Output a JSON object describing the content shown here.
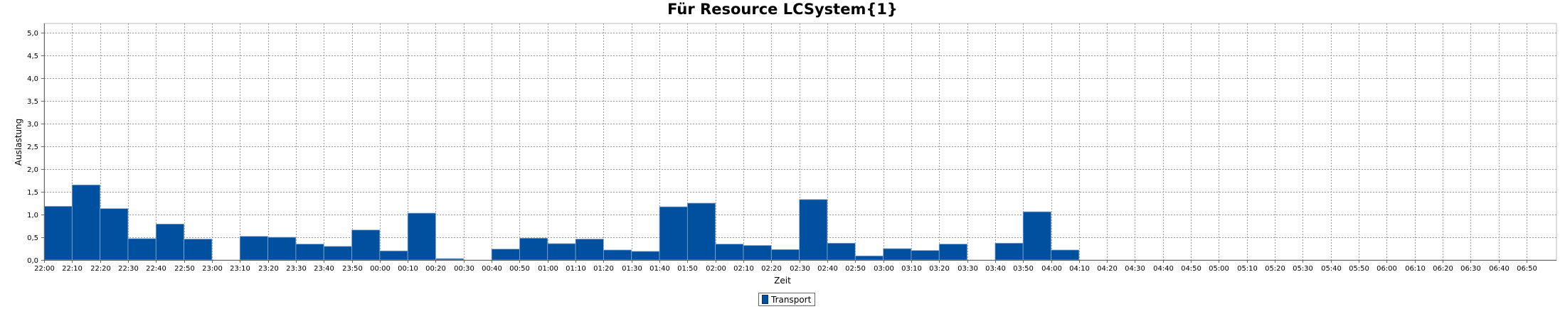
{
  "chart_data": {
    "type": "bar",
    "title": "Für Resource LCSystem{1}",
    "xlabel": "Zeit",
    "ylabel": "Auslastung",
    "ylim": [
      0,
      5.2
    ],
    "yticks": [
      "0,0",
      "0,5",
      "1,0",
      "1,5",
      "2,0",
      "2,5",
      "3,0",
      "3,5",
      "4,0",
      "4,5",
      "5,0"
    ],
    "grid": true,
    "legend_position": "bottom",
    "series": [
      {
        "name": "Transport",
        "color": "#0050a0",
        "values": [
          1.18,
          1.65,
          1.13,
          0.47,
          0.79,
          0.46,
          0,
          0.52,
          0.5,
          0.35,
          0.3,
          0.66,
          0.2,
          1.03,
          0.03,
          0,
          0.24,
          0.48,
          0.36,
          0.46,
          0.22,
          0.19,
          1.17,
          1.25,
          0.35,
          0.32,
          0.23,
          1.33,
          0.37,
          0.09,
          0.25,
          0.21,
          0.35,
          0,
          0.37,
          1.06,
          0.22,
          0,
          0,
          0,
          0,
          0,
          0,
          0,
          0,
          0,
          0,
          0,
          0,
          0,
          0,
          0,
          0,
          0
        ]
      }
    ],
    "categories": [
      "22:00",
      "22:10",
      "22:20",
      "22:30",
      "22:40",
      "22:50",
      "23:00",
      "23:10",
      "23:20",
      "23:30",
      "23:40",
      "23:50",
      "00:00",
      "00:10",
      "00:20",
      "00:30",
      "00:40",
      "00:50",
      "01:00",
      "01:10",
      "01:20",
      "01:30",
      "01:40",
      "01:50",
      "02:00",
      "02:10",
      "02:20",
      "02:30",
      "02:40",
      "02:50",
      "03:00",
      "03:10",
      "03:20",
      "03:30",
      "03:40",
      "03:50",
      "04:00",
      "04:10",
      "04:20",
      "04:30",
      "04:40",
      "04:50",
      "05:00",
      "05:10",
      "05:20",
      "05:30",
      "05:40",
      "05:50",
      "06:00",
      "06:10",
      "06:20",
      "06:30",
      "06:40",
      "06:50"
    ]
  }
}
